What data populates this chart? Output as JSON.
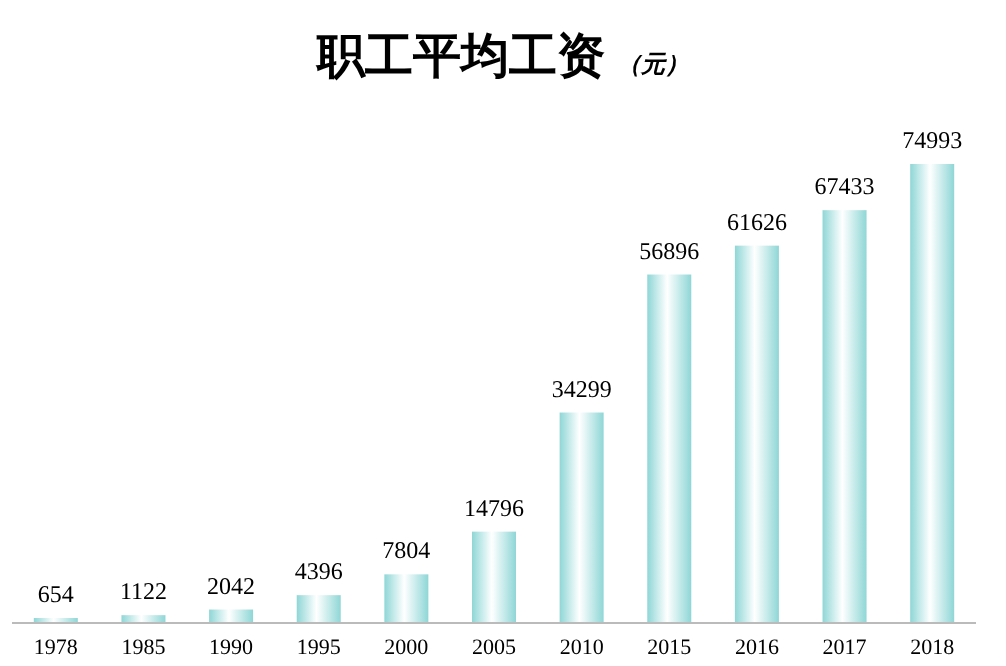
{
  "chart_data": {
    "type": "bar",
    "title": "职工平均工资",
    "subtitle": "（元）",
    "categories": [
      "1978",
      "1985",
      "1990",
      "1995",
      "2000",
      "2005",
      "2010",
      "2015",
      "2016",
      "2017",
      "2018"
    ],
    "values": [
      654,
      1122,
      2042,
      4396,
      7804,
      14796,
      34299,
      56896,
      61626,
      67433,
      74993
    ],
    "color": "#8fd6d6",
    "data_labels": true
  }
}
